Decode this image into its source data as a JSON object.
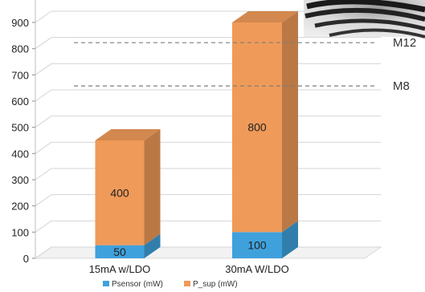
{
  "chart_data": {
    "type": "bar",
    "stacked": true,
    "three_d": true,
    "categories": [
      "15mA w/LDO",
      "30mA W/LDO"
    ],
    "series": [
      {
        "name": "Psensor (mW)",
        "values": [
          50,
          100
        ],
        "color": "#3fa1dc"
      },
      {
        "name": "P_sup (mW)",
        "values": [
          400,
          800
        ],
        "color": "#ef9a59"
      }
    ],
    "data_labels": [
      [
        "50",
        "400"
      ],
      [
        "100",
        "800"
      ]
    ],
    "y_ticks": [
      0,
      100,
      200,
      300,
      400,
      500,
      600,
      700,
      800,
      900
    ],
    "ylim": [
      0,
      900
    ],
    "grid": true,
    "legend_position": "bottom",
    "reference_lines": [
      {
        "label": "M12",
        "value": 780
      },
      {
        "label": "M8",
        "value": 615
      }
    ],
    "title": "",
    "xlabel": "",
    "ylabel": ""
  },
  "photo": {
    "name": "cable-photo"
  }
}
